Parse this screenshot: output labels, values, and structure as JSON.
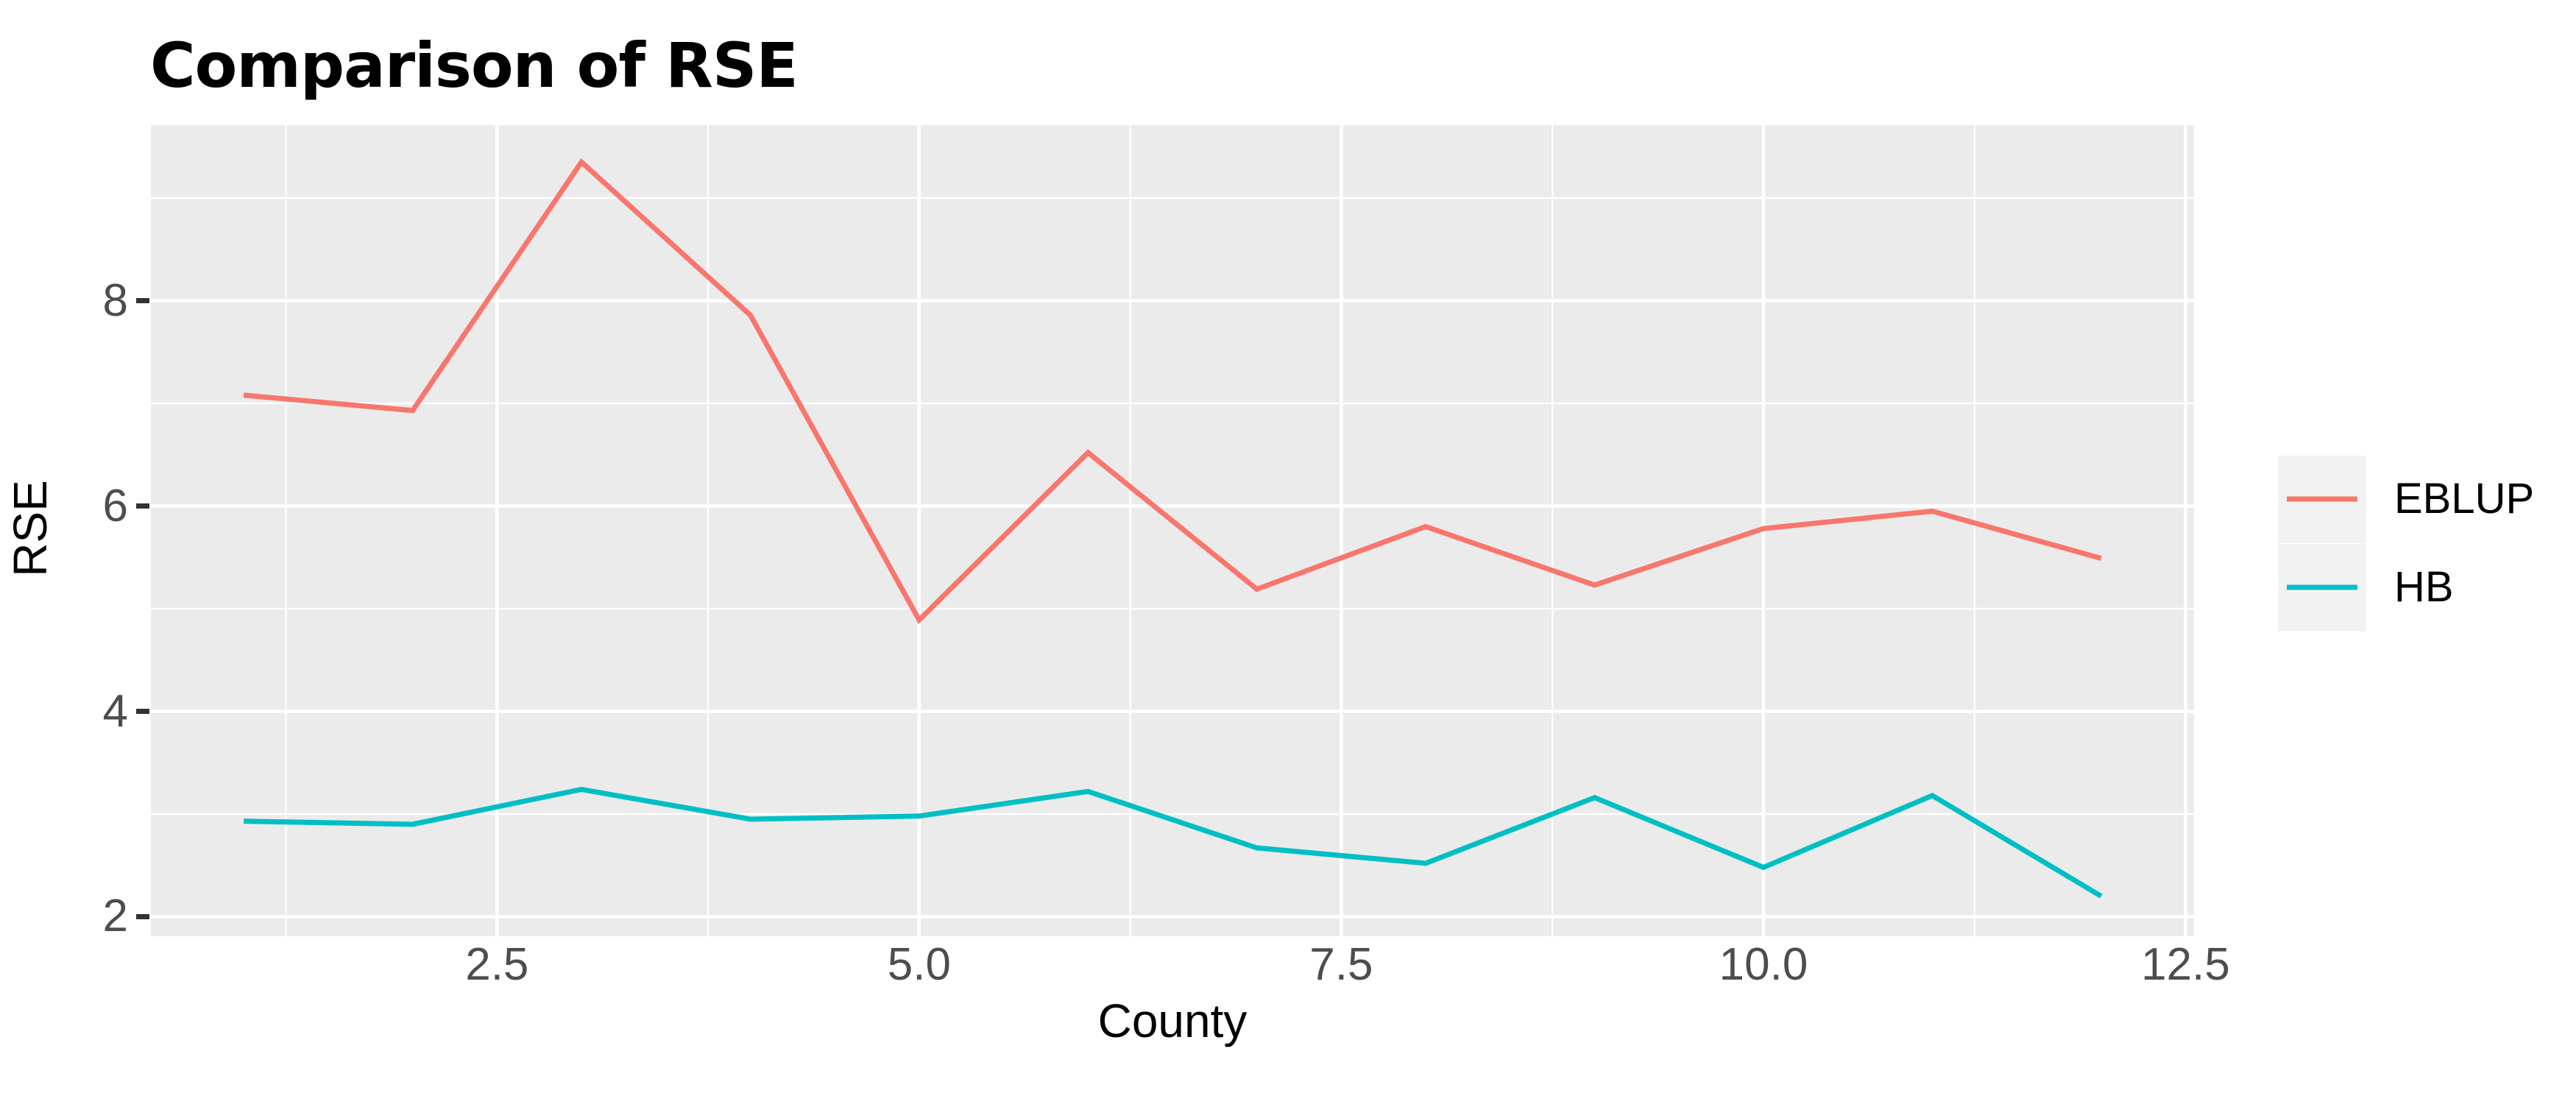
{
  "chart_data": {
    "type": "line",
    "title": "Comparison of RSE",
    "xlabel": "County",
    "ylabel": "RSE",
    "x": [
      1,
      2,
      3,
      4,
      5,
      6,
      7,
      8,
      9,
      10,
      11,
      12
    ],
    "series": [
      {
        "name": "EBLUP",
        "color": "#F8766D",
        "values": [
          7.08,
          6.93,
          9.35,
          7.86,
          4.89,
          6.52,
          5.19,
          5.8,
          5.23,
          5.78,
          5.95,
          5.49
        ]
      },
      {
        "name": "HB",
        "color": "#00BFC4",
        "values": [
          2.93,
          2.9,
          3.24,
          2.95,
          2.98,
          3.22,
          2.67,
          2.52,
          3.16,
          2.48,
          3.18,
          2.2
        ]
      }
    ],
    "xlim": [
      0.45,
      12.55
    ],
    "ylim": [
      1.81,
      9.71
    ],
    "x_ticks": {
      "values": [
        2.5,
        5,
        7.5,
        10,
        12.5
      ],
      "labels": [
        "2.5",
        "5.0",
        "7.5",
        "10.0",
        "12.5"
      ]
    },
    "y_ticks": {
      "values": [
        2,
        4,
        6,
        8
      ],
      "labels": [
        "2",
        "4",
        "6",
        "8"
      ]
    },
    "x_minor_gridlines": [
      1.25,
      3.75,
      6.25,
      8.75,
      11.25
    ],
    "y_minor_gridlines": [
      3,
      5,
      7,
      9
    ],
    "grid": true,
    "legend_position": "right",
    "style": {
      "panel_bg": "#EBEBEB",
      "grid_color": "#FFFFFF",
      "axis_tick_color": "#333333",
      "tick_label_color": "#4D4D4D",
      "text_color": "#000000",
      "legend_key_bg": "#F2F2F2"
    }
  }
}
